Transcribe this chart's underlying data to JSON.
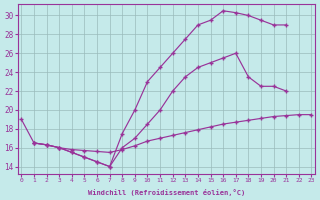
{
  "xlabel": "Windchill (Refroidissement éolien,°C)",
  "xlim": [
    -0.3,
    23.3
  ],
  "ylim": [
    13.2,
    31.2
  ],
  "xticks": [
    0,
    1,
    2,
    3,
    4,
    5,
    6,
    7,
    8,
    9,
    10,
    11,
    12,
    13,
    14,
    15,
    16,
    17,
    18,
    19,
    20,
    21,
    22,
    23
  ],
  "yticks": [
    14,
    16,
    18,
    20,
    22,
    24,
    26,
    28,
    30
  ],
  "bg_color": "#c5eaea",
  "line_color": "#993399",
  "grid_color": "#9abcbc",
  "line1_x": [
    0,
    1,
    2,
    3,
    4,
    5,
    6,
    7,
    8,
    9,
    10,
    11,
    12,
    13,
    14,
    15,
    16,
    17,
    18,
    19,
    20,
    21
  ],
  "line1_y": [
    19.0,
    16.5,
    16.3,
    16.0,
    15.5,
    15.0,
    14.5,
    14.0,
    17.5,
    20.0,
    23.0,
    24.5,
    26.0,
    27.5,
    29.0,
    29.5,
    30.5,
    30.3,
    30.0,
    29.5,
    29.0,
    29.0
  ],
  "line2_x": [
    1,
    2,
    3,
    4,
    5,
    6,
    7,
    8,
    9,
    10,
    11,
    12,
    13,
    14,
    15,
    16,
    17,
    18,
    19,
    20,
    21
  ],
  "line2_y": [
    16.5,
    16.3,
    16.0,
    15.5,
    15.0,
    14.5,
    14.0,
    16.0,
    17.0,
    18.5,
    20.0,
    22.0,
    23.5,
    24.5,
    25.0,
    25.5,
    26.0,
    23.5,
    22.5,
    22.5,
    22.0
  ],
  "line3_x": [
    1,
    2,
    3,
    4,
    5,
    6,
    7,
    8,
    9,
    10,
    11,
    12,
    13,
    14,
    15,
    16,
    17,
    18,
    19,
    20,
    21,
    22,
    23
  ],
  "line3_y": [
    16.5,
    16.3,
    16.0,
    15.8,
    15.7,
    15.6,
    15.5,
    15.8,
    16.2,
    16.7,
    17.0,
    17.3,
    17.6,
    17.9,
    18.2,
    18.5,
    18.7,
    18.9,
    19.1,
    19.3,
    19.4,
    19.5,
    19.5
  ]
}
